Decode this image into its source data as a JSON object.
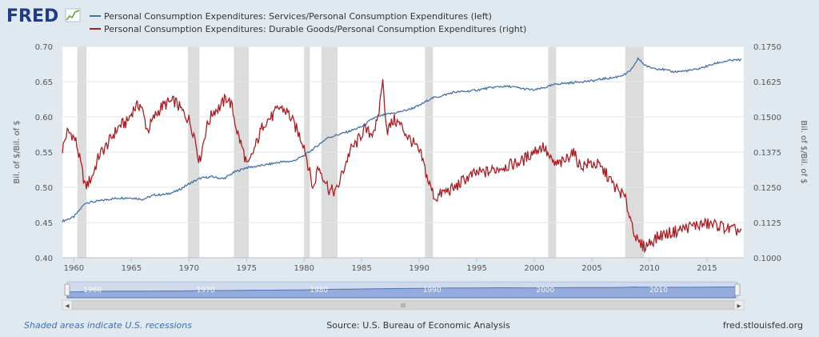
{
  "brand": {
    "logo_text": "FRED",
    "site": "fred.stlouisfed.org"
  },
  "footer": {
    "note": "Shaded areas indicate U.S. recessions",
    "source": "Source: U.S. Bureau of Economic Analysis",
    "site": "fred.stlouisfed.org"
  },
  "colors": {
    "background": "#e1e9f0",
    "plot_bg": "#ffffff",
    "grid": "#e6e6e6",
    "recession": "#dcdcdc",
    "series_left": "#4572a7",
    "series_right": "#aa1e24",
    "navigator_fill": "#a8bde6",
    "navigator_line": "#4572a7"
  },
  "navigator": {
    "labels": [
      "1960",
      "1970",
      "1980",
      "1990",
      "2000",
      "2010"
    ],
    "scroll_left_icon": "◂",
    "scroll_right_icon": "▸",
    "scroll_grip_icon": "III"
  },
  "chart_data": {
    "type": "line",
    "x_range": [
      1959,
      2018.2
    ],
    "x_ticks": [
      1960,
      1965,
      1970,
      1975,
      1980,
      1985,
      1990,
      1995,
      2000,
      2005,
      2010,
      2015
    ],
    "y_left": {
      "label": "Bil. of $/Bil. of $",
      "range": [
        0.4,
        0.7
      ],
      "ticks": [
        "0.40",
        "0.45",
        "0.50",
        "0.55",
        "0.60",
        "0.65",
        "0.70"
      ]
    },
    "y_right": {
      "label": "Bil. of $/Bil. of $",
      "range": [
        0.1,
        0.175
      ],
      "ticks": [
        "0.1000",
        "0.1125",
        "0.1250",
        "0.1375",
        "0.1500",
        "0.1625",
        "0.1750"
      ]
    },
    "recessions": [
      [
        1960.3,
        1961.1
      ],
      [
        1969.9,
        1970.9
      ],
      [
        1973.9,
        1975.2
      ],
      [
        1980.0,
        1980.5
      ],
      [
        1981.5,
        1982.9
      ],
      [
        1990.5,
        1991.2
      ],
      [
        2001.2,
        2001.9
      ],
      [
        2007.9,
        2009.5
      ]
    ],
    "series": [
      {
        "name": "Personal Consumption Expenditures: Services/Personal Consumption Expenditures (left)",
        "axis": "left",
        "x": [
          1959,
          1960,
          1960.5,
          1961,
          1962,
          1963,
          1964,
          1965,
          1966,
          1967,
          1968,
          1969,
          1970,
          1971,
          1972,
          1973,
          1974,
          1975,
          1976,
          1977,
          1978,
          1979,
          1980,
          1981,
          1982,
          1983,
          1984,
          1985,
          1986,
          1987,
          1988,
          1989,
          1990,
          1991,
          1992,
          1993,
          1994,
          1995,
          1996,
          1997,
          1998,
          1999,
          2000,
          2001,
          2002,
          2003,
          2004,
          2005,
          2006,
          2007,
          2008,
          2008.6,
          2009,
          2009.5,
          2010,
          2011,
          2012,
          2013,
          2014,
          2015,
          2016,
          2017,
          2018
        ],
        "values": [
          0.452,
          0.458,
          0.468,
          0.478,
          0.48,
          0.483,
          0.485,
          0.485,
          0.483,
          0.489,
          0.49,
          0.495,
          0.505,
          0.513,
          0.515,
          0.512,
          0.522,
          0.528,
          0.53,
          0.533,
          0.536,
          0.537,
          0.545,
          0.557,
          0.57,
          0.575,
          0.58,
          0.586,
          0.598,
          0.603,
          0.606,
          0.61,
          0.616,
          0.626,
          0.63,
          0.635,
          0.636,
          0.638,
          0.641,
          0.643,
          0.643,
          0.64,
          0.638,
          0.642,
          0.647,
          0.648,
          0.65,
          0.651,
          0.654,
          0.656,
          0.661,
          0.67,
          0.683,
          0.675,
          0.67,
          0.668,
          0.664,
          0.665,
          0.667,
          0.672,
          0.677,
          0.68,
          0.681
        ]
      },
      {
        "name": "Personal Consumption Expenditures: Durable Goods/Personal Consumption Expenditures (right)",
        "axis": "right",
        "x": [
          1959,
          1959.4,
          1959.8,
          1960.2,
          1960.6,
          1961,
          1961.6,
          1962.2,
          1962.8,
          1963.4,
          1964,
          1964.6,
          1965.2,
          1965.8,
          1966.4,
          1967,
          1967.6,
          1968.2,
          1968.8,
          1969.4,
          1970,
          1970.5,
          1970.9,
          1971.5,
          1972.1,
          1972.7,
          1973.3,
          1973.7,
          1974.2,
          1974.7,
          1975.1,
          1975.8,
          1976.5,
          1977.2,
          1977.9,
          1978.6,
          1979.3,
          1980,
          1980.4,
          1980.8,
          1981.2,
          1981.6,
          1982.2,
          1982.8,
          1983.4,
          1984,
          1984.6,
          1985.2,
          1985.8,
          1986.4,
          1986.8,
          1987.2,
          1987.8,
          1988.4,
          1989,
          1989.6,
          1990.2,
          1990.8,
          1991.4,
          1992,
          1993,
          1994,
          1995,
          1996,
          1997,
          1998,
          1999,
          2000,
          2000.8,
          2001.5,
          2001.9,
          2002.6,
          2003.3,
          2004,
          2004.8,
          2005.5,
          2006.2,
          2007,
          2007.8,
          2008.5,
          2009,
          2009.6,
          2010.2,
          2011,
          2012,
          2013,
          2014,
          2015,
          2016,
          2017,
          2018
        ],
        "values": [
          0.1385,
          0.1445,
          0.144,
          0.141,
          0.133,
          0.125,
          0.129,
          0.1365,
          0.1395,
          0.1435,
          0.147,
          0.148,
          0.153,
          0.1545,
          0.145,
          0.15,
          0.1535,
          0.155,
          0.1555,
          0.152,
          0.149,
          0.143,
          0.134,
          0.146,
          0.152,
          0.1535,
          0.157,
          0.154,
          0.1445,
          0.138,
          0.132,
          0.14,
          0.148,
          0.15,
          0.1535,
          0.1515,
          0.146,
          0.14,
          0.132,
          0.124,
          0.1325,
          0.1295,
          0.124,
          0.1235,
          0.131,
          0.138,
          0.141,
          0.1455,
          0.144,
          0.148,
          0.1635,
          0.145,
          0.149,
          0.147,
          0.143,
          0.14,
          0.136,
          0.127,
          0.121,
          0.123,
          0.1245,
          0.128,
          0.13,
          0.1305,
          0.132,
          0.133,
          0.1345,
          0.138,
          0.1395,
          0.134,
          0.133,
          0.134,
          0.138,
          0.1325,
          0.1335,
          0.133,
          0.13,
          0.125,
          0.122,
          0.112,
          0.105,
          0.104,
          0.106,
          0.108,
          0.109,
          0.1105,
          0.1115,
          0.112,
          0.1115,
          0.11,
          0.1095
        ]
      }
    ]
  }
}
